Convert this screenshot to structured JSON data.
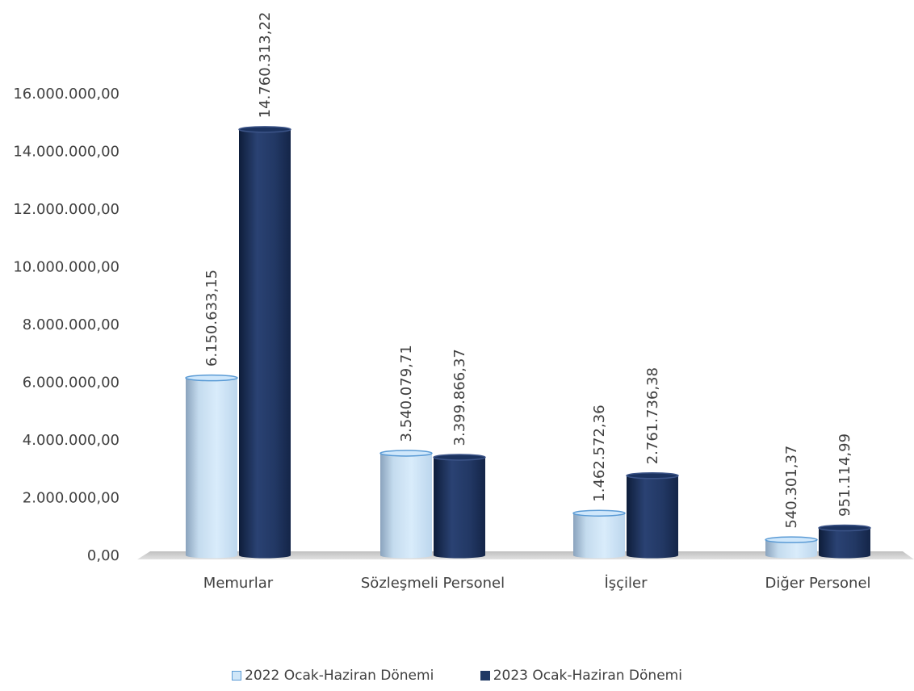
{
  "chart_data": {
    "type": "bar",
    "categories": [
      "Memurlar",
      "Sözleşmeli Personel",
      "İşçiler",
      "Diğer Personel"
    ],
    "series": [
      {
        "name": "2022 Ocak-Haziran Dönemi",
        "values": [
          6150633.15,
          3540079.71,
          1462572.36,
          540301.37
        ],
        "labels": [
          "6.150.633,15",
          "3.540.079,71",
          "1.462.572,36",
          "540.301,37"
        ],
        "color": "#bcdcf3"
      },
      {
        "name": "2023 Ocak-Haziran Dönemi",
        "values": [
          14760313.22,
          3399866.37,
          2761736.38,
          951114.99
        ],
        "labels": [
          "14.760.313,22",
          "3.399.866,37",
          "2.761.736,38",
          "951.114,99"
        ],
        "color": "#1f3864"
      }
    ],
    "yticks": [
      "0,00",
      "2.000.000,00",
      "4.000.000,00",
      "6.000.000,00",
      "8.000.000,00",
      "10.000.000,00",
      "12.000.000,00",
      "14.000.000,00",
      "16.000.000,00"
    ],
    "ylim": [
      0,
      16000000
    ],
    "grid": false,
    "legend_position": "bottom",
    "title": "",
    "xlabel": "",
    "ylabel": ""
  }
}
